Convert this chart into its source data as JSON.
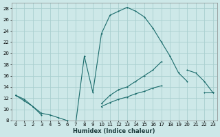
{
  "xlabel": "Humidex (Indice chaleur)",
  "bg_color": "#cde8e8",
  "grid_color": "#aacfcf",
  "line_color": "#1a6b6b",
  "xlim": [
    -0.5,
    23.5
  ],
  "ylim": [
    8,
    29
  ],
  "yticks": [
    8,
    10,
    12,
    14,
    16,
    18,
    20,
    22,
    24,
    26,
    28
  ],
  "xticks": [
    0,
    1,
    2,
    3,
    4,
    5,
    6,
    7,
    8,
    9,
    10,
    11,
    12,
    13,
    14,
    15,
    16,
    17,
    18,
    19,
    20,
    21,
    22,
    23
  ],
  "curve1": {
    "x": [
      0,
      1,
      2,
      3,
      4,
      5,
      6,
      7,
      8,
      9,
      10,
      11,
      12,
      13,
      14,
      15,
      16,
      17,
      18,
      19,
      20
    ],
    "y": [
      12.5,
      11.8,
      10.5,
      9.3,
      9.0,
      8.5,
      8.0,
      7.5,
      19.5,
      13.0,
      23.5,
      26.8,
      27.5,
      28.2,
      27.5,
      26.5,
      24.5,
      22.0,
      19.5,
      16.5,
      15.0
    ]
  },
  "curve2": {
    "x": [
      0,
      1,
      2,
      3,
      10,
      11,
      12,
      13,
      14,
      15,
      16,
      17,
      20,
      21,
      22,
      23
    ],
    "y": [
      12.5,
      11.5,
      10.5,
      9.0,
      11.0,
      12.5,
      13.5,
      14.0,
      15.0,
      16.0,
      17.0,
      18.5,
      17.0,
      16.5,
      15.0,
      13.0
    ]
  },
  "curve2_breaks": [
    3,
    10,
    17,
    20
  ],
  "curve3": {
    "x": [
      0,
      10,
      11,
      12,
      13,
      14,
      15,
      16,
      17,
      22,
      23
    ],
    "y": [
      12.5,
      10.5,
      11.2,
      11.8,
      12.2,
      12.8,
      13.2,
      13.8,
      14.2,
      13.0,
      13.0
    ]
  },
  "curve3_breaks": [
    0,
    10,
    17,
    22
  ]
}
